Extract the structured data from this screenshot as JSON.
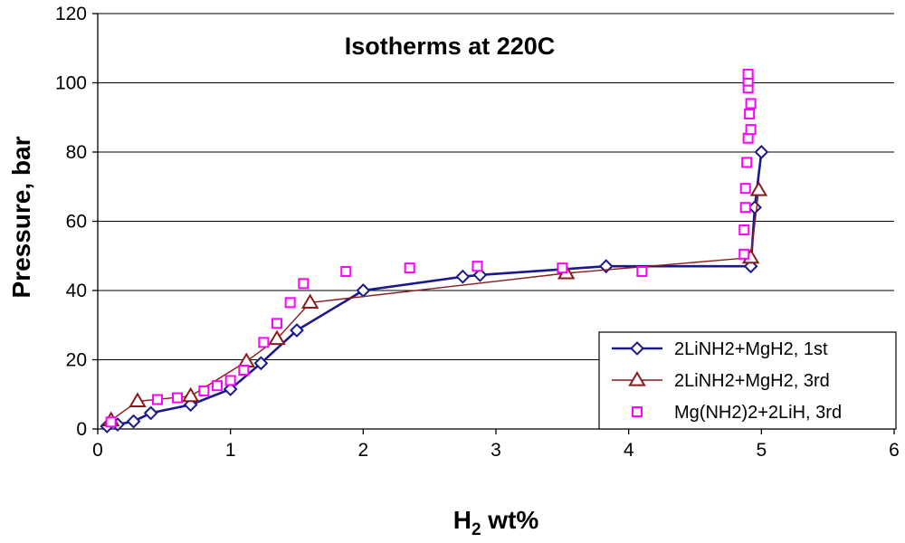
{
  "chart_data": {
    "type": "scatter",
    "title": "Isotherms at 220C",
    "xlabel": {
      "main": "H",
      "sub": "2",
      "rest": " wt%"
    },
    "ylabel": "Pressure, bar",
    "xlim": [
      0,
      6
    ],
    "ylim": [
      0,
      120
    ],
    "xticks": [
      0,
      1,
      2,
      3,
      4,
      5,
      6
    ],
    "yticks": [
      0,
      20,
      40,
      60,
      80,
      100,
      120
    ],
    "grid": "horizontal",
    "legend_position": "bottom-right",
    "series": [
      {
        "name": "2LiNH2+MgH2, 1st",
        "marker": "diamond",
        "line": true,
        "color": "#1a1a8c",
        "points": [
          [
            0.07,
            0.8
          ],
          [
            0.15,
            1.3
          ],
          [
            0.27,
            2.2
          ],
          [
            0.4,
            4.6
          ],
          [
            0.7,
            7.0
          ],
          [
            1.0,
            11.5
          ],
          [
            1.23,
            19.0
          ],
          [
            1.5,
            28.5
          ],
          [
            2.0,
            40.0
          ],
          [
            2.75,
            44.0
          ],
          [
            2.88,
            44.5
          ],
          [
            3.83,
            47.0
          ],
          [
            4.92,
            47.0
          ],
          [
            4.95,
            64.0
          ],
          [
            5.0,
            80.0
          ]
        ]
      },
      {
        "name": "2LiNH2+MgH2, 3rd",
        "marker": "triangle",
        "line": true,
        "color": "#8b1a1a",
        "points": [
          [
            0.1,
            2.5
          ],
          [
            0.3,
            8.0
          ],
          [
            0.7,
            9.5
          ],
          [
            1.12,
            19.5
          ],
          [
            1.35,
            26.0
          ],
          [
            1.6,
            36.5
          ],
          [
            3.53,
            45.0
          ],
          [
            4.92,
            49.5
          ],
          [
            4.98,
            69.0
          ]
        ]
      },
      {
        "name": "Mg(NH2)2+2LiH, 3rd",
        "marker": "square",
        "line": false,
        "color": "#ff00ff",
        "points": [
          [
            0.1,
            2.0
          ],
          [
            0.45,
            8.5
          ],
          [
            0.6,
            9.0
          ],
          [
            0.8,
            11.0
          ],
          [
            0.9,
            12.5
          ],
          [
            1.0,
            14.0
          ],
          [
            1.1,
            17.0
          ],
          [
            1.25,
            25.0
          ],
          [
            1.35,
            30.5
          ],
          [
            1.45,
            36.5
          ],
          [
            1.55,
            42.0
          ],
          [
            1.87,
            45.5
          ],
          [
            2.35,
            46.5
          ],
          [
            2.86,
            47.0
          ],
          [
            3.5,
            46.5
          ],
          [
            4.1,
            45.5
          ],
          [
            4.87,
            50.5
          ],
          [
            4.87,
            57.5
          ],
          [
            4.88,
            64.0
          ],
          [
            4.88,
            69.5
          ],
          [
            4.89,
            77.0
          ],
          [
            4.9,
            84.0
          ],
          [
            4.92,
            86.5
          ],
          [
            4.91,
            91.0
          ],
          [
            4.92,
            94.0
          ],
          [
            4.9,
            98.5
          ],
          [
            4.9,
            100.5
          ],
          [
            4.9,
            102.5
          ]
        ]
      }
    ]
  }
}
